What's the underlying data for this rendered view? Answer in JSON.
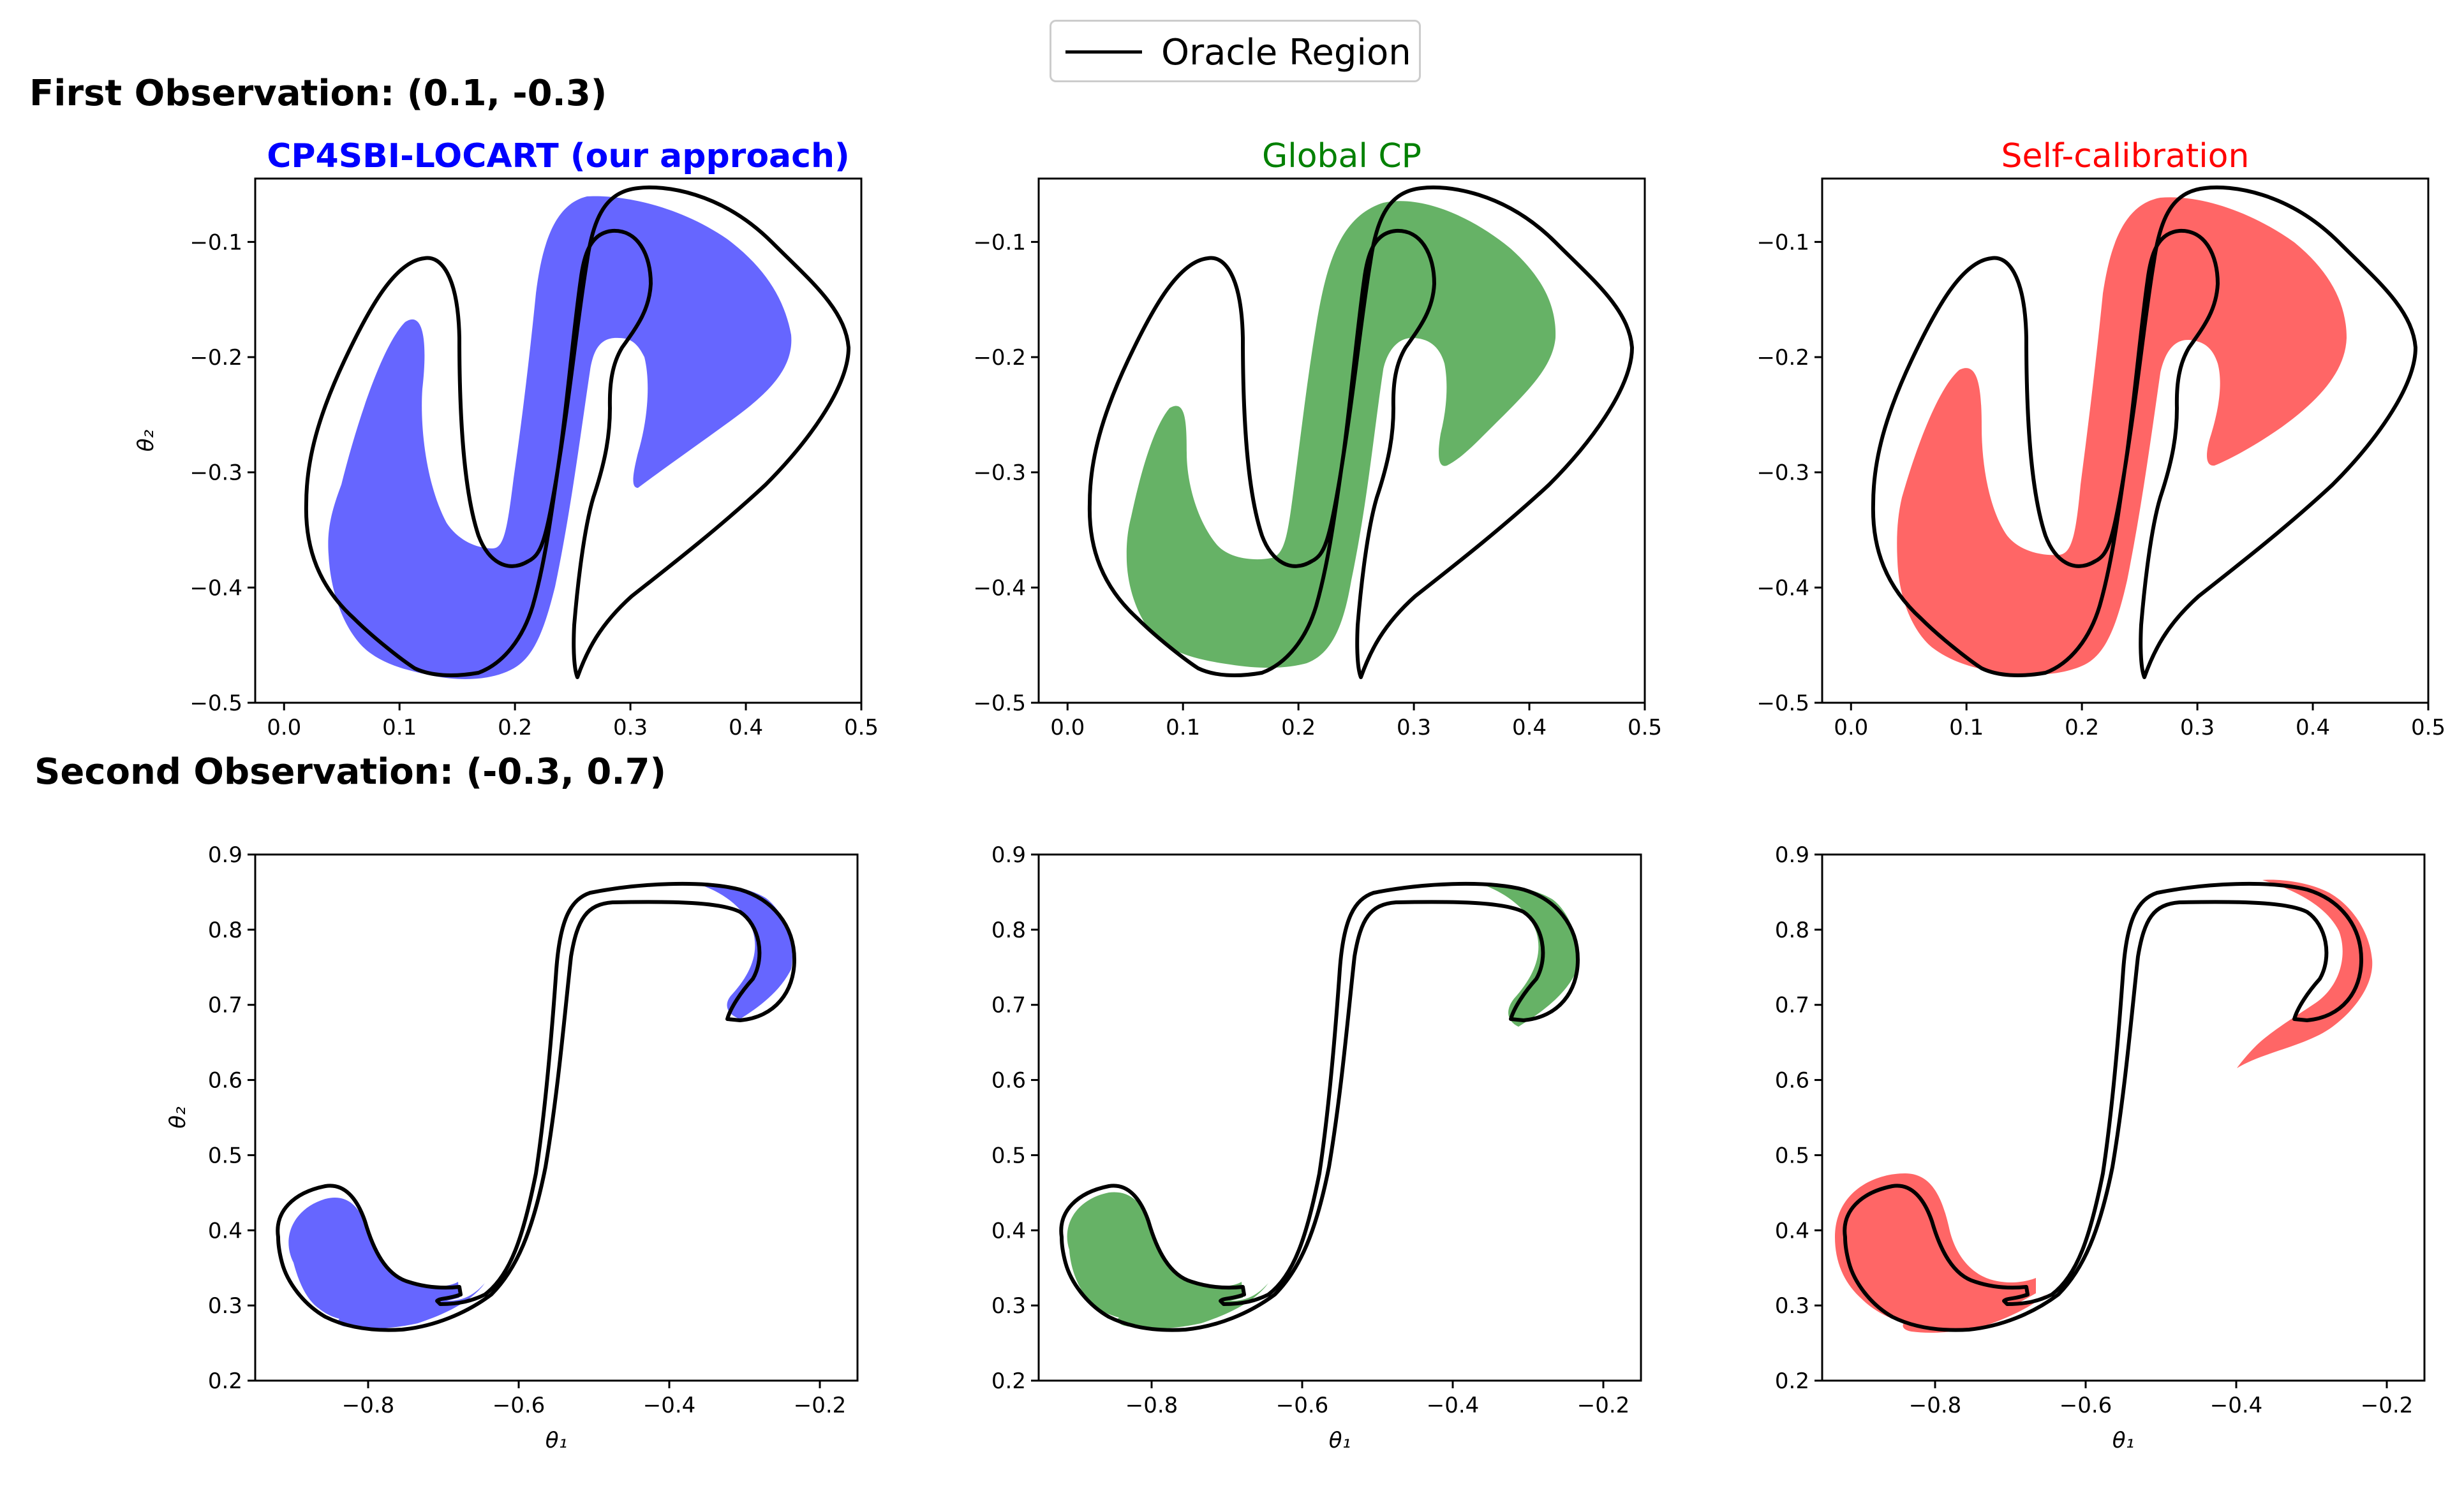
{
  "legend": {
    "label": "Oracle Region",
    "line_color": "#000000"
  },
  "row_titles": {
    "first": "First Observation: (0.1, -0.3)",
    "second": "Second Observation: (-0.3, 0.7)"
  },
  "column_titles": [
    {
      "text": "CP4SBI-LOCART (our approach)",
      "color": "#0000ff",
      "bold": true
    },
    {
      "text": "Global CP",
      "color": "#008000",
      "bold": false
    },
    {
      "text": "Self-calibration",
      "color": "#ff0000",
      "bold": false
    }
  ],
  "colors": {
    "fill_blue": "#6666ff",
    "fill_green": "#66b266",
    "fill_red": "#ff6666"
  },
  "chart_data": [
    {
      "type": "area",
      "title": "CP4SBI-LOCART (our approach)",
      "xlabel": "",
      "ylabel": "θ₂",
      "xlim": [
        -0.025,
        0.5
      ],
      "ylim": [
        -0.5,
        -0.045
      ],
      "xticks": [
        "0.0",
        "0.1",
        "0.2",
        "0.3",
        "0.4",
        "0.5"
      ],
      "yticks": [
        "−0.5",
        "−0.4",
        "−0.3",
        "−0.2",
        "−0.1"
      ],
      "fill_color": "#6666ff",
      "series": [
        {
          "name": "Oracle Region"
        }
      ]
    },
    {
      "type": "area",
      "title": "Global CP",
      "xlabel": "",
      "ylabel": "",
      "xlim": [
        -0.025,
        0.5
      ],
      "ylim": [
        -0.5,
        -0.045
      ],
      "xticks": [
        "0.0",
        "0.1",
        "0.2",
        "0.3",
        "0.4",
        "0.5"
      ],
      "yticks": [
        "−0.5",
        "−0.4",
        "−0.3",
        "−0.2",
        "−0.1"
      ],
      "fill_color": "#66b266",
      "series": [
        {
          "name": "Oracle Region"
        }
      ]
    },
    {
      "type": "area",
      "title": "Self-calibration",
      "xlabel": "",
      "ylabel": "",
      "xlim": [
        -0.025,
        0.5
      ],
      "ylim": [
        -0.5,
        -0.045
      ],
      "xticks": [
        "0.0",
        "0.1",
        "0.2",
        "0.3",
        "0.4",
        "0.5"
      ],
      "yticks": [
        "−0.5",
        "−0.4",
        "−0.3",
        "−0.2",
        "−0.1"
      ],
      "fill_color": "#ff6666",
      "series": [
        {
          "name": "Oracle Region"
        }
      ]
    },
    {
      "type": "area",
      "title": "",
      "xlabel": "θ₁",
      "ylabel": "θ₂",
      "xlim": [
        -0.95,
        -0.15
      ],
      "ylim": [
        0.2,
        0.9
      ],
      "xticks": [
        "−0.8",
        "−0.6",
        "−0.4",
        "−0.2"
      ],
      "yticks": [
        "0.2",
        "0.3",
        "0.4",
        "0.5",
        "0.6",
        "0.7",
        "0.8",
        "0.9"
      ],
      "fill_color": "#6666ff",
      "series": [
        {
          "name": "Oracle Region"
        }
      ]
    },
    {
      "type": "area",
      "title": "",
      "xlabel": "θ₁",
      "ylabel": "",
      "xlim": [
        -0.95,
        -0.15
      ],
      "ylim": [
        0.2,
        0.9
      ],
      "xticks": [
        "−0.8",
        "−0.6",
        "−0.4",
        "−0.2"
      ],
      "yticks": [
        "0.2",
        "0.3",
        "0.4",
        "0.5",
        "0.6",
        "0.7",
        "0.8",
        "0.9"
      ],
      "fill_color": "#66b266",
      "series": [
        {
          "name": "Oracle Region"
        }
      ]
    },
    {
      "type": "area",
      "title": "",
      "xlabel": "θ₁",
      "ylabel": "",
      "xlim": [
        -0.95,
        -0.15
      ],
      "ylim": [
        0.2,
        0.9
      ],
      "xticks": [
        "−0.8",
        "−0.6",
        "−0.4",
        "−0.2"
      ],
      "yticks": [
        "0.2",
        "0.3",
        "0.4",
        "0.5",
        "0.6",
        "0.7",
        "0.8",
        "0.9"
      ],
      "fill_color": "#ff6666",
      "series": [
        {
          "name": "Oracle Region"
        }
      ]
    }
  ]
}
